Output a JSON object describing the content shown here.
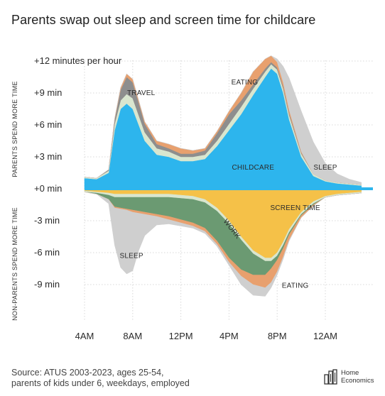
{
  "title": "Parents swap out sleep and screen time for childcare",
  "source_lines": [
    "Source: ATUS 2003-2023, ages 25-54,",
    "parents of kids under 6, weekdays, employed"
  ],
  "logo": {
    "line1": "Home",
    "line2": "Economics"
  },
  "colors": {
    "childcare": "#2db5ed",
    "screen_time": "#f5c148",
    "work": "#6b9a72",
    "sleep": "#cfcfcf",
    "eating": "#e8a06e",
    "travel": "#8e8e8e",
    "thin_band": "#d9e6cf",
    "zero_line": "#2db5ed",
    "grid": "#d8d8d8"
  },
  "chart_data": {
    "type": "area",
    "title": "Parents swap out sleep and screen time for childcare",
    "y_top_label": "PARENTS SPEND MORE TIME",
    "y_bottom_label": "NON-PARENTS SPEND MORE TIME",
    "x_ticks": [
      {
        "hour": 4,
        "label": "4AM"
      },
      {
        "hour": 8,
        "label": "8AM"
      },
      {
        "hour": 12,
        "label": "12PM"
      },
      {
        "hour": 16,
        "label": "4PM"
      },
      {
        "hour": 20,
        "label": "8PM"
      },
      {
        "hour": 24,
        "label": "12AM"
      }
    ],
    "xlim": [
      0,
      28
    ],
    "y_ticks": [
      {
        "value": 12,
        "label": "+12 minutes per hour"
      },
      {
        "value": 9,
        "label": "+9 min"
      },
      {
        "value": 6,
        "label": "+6 min"
      },
      {
        "value": 3,
        "label": "+3 min"
      },
      {
        "value": 0,
        "label": "+0 min"
      },
      {
        "value": -3,
        "label": "-3 min"
      },
      {
        "value": -6,
        "label": "-6 min"
      },
      {
        "value": -9,
        "label": "-9 min"
      }
    ],
    "ylim": [
      -11.5,
      12
    ],
    "grid": true,
    "x_hours": [
      4,
      5,
      6,
      6.5,
      7,
      7.5,
      8,
      8.5,
      9,
      10,
      11,
      12,
      13,
      14,
      15,
      16,
      17,
      18,
      19,
      19.5,
      20,
      20.5,
      21,
      22,
      23,
      24,
      25,
      26,
      27
    ],
    "positive_series": [
      {
        "name": "CHILDCARE",
        "color_key": "childcare",
        "values": [
          1.0,
          0.9,
          1.5,
          5.5,
          7.5,
          8.0,
          7.5,
          6.0,
          4.5,
          3.2,
          3.0,
          2.6,
          2.6,
          2.8,
          4.0,
          5.5,
          7.0,
          8.8,
          10.5,
          11.3,
          10.8,
          9.0,
          6.5,
          3.0,
          1.2,
          0.7,
          0.5,
          0.4,
          0.3
        ]
      },
      {
        "name": "thin band",
        "color_key": "thin_band",
        "values": [
          0.1,
          0.1,
          0.2,
          0.6,
          0.8,
          0.9,
          1.0,
          0.9,
          0.8,
          0.6,
          0.5,
          0.4,
          0.4,
          0.4,
          0.5,
          0.6,
          0.7,
          0.6,
          0.5,
          0.4,
          0.4,
          0.4,
          0.4,
          0.3,
          0.2,
          0.1,
          0.1,
          0.1,
          0.1
        ]
      },
      {
        "name": "TRAVEL",
        "color_key": "travel",
        "values": [
          0.0,
          0.0,
          0.1,
          0.4,
          1.0,
          1.6,
          1.5,
          1.2,
          0.8,
          0.4,
          0.3,
          0.3,
          0.3,
          0.4,
          0.7,
          0.9,
          0.6,
          0.4,
          0.3,
          0.2,
          0.2,
          0.2,
          0.2,
          0.1,
          0.0,
          0.0,
          0.0,
          0.0,
          0.0
        ]
      },
      {
        "name": "EATING",
        "color_key": "eating",
        "values": [
          0.0,
          0.0,
          0.0,
          0.1,
          0.2,
          0.3,
          0.3,
          0.2,
          0.2,
          0.3,
          0.4,
          0.5,
          0.3,
          0.2,
          0.2,
          0.3,
          0.7,
          1.2,
          0.9,
          0.6,
          0.5,
          0.4,
          0.3,
          0.1,
          0.0,
          0.0,
          0.0,
          0.0,
          0.0
        ]
      },
      {
        "name": "SLEEP",
        "color_key": "sleep",
        "values": [
          0.0,
          0.0,
          0.0,
          0.0,
          0.0,
          0.0,
          0.0,
          0.0,
          0.0,
          0.0,
          0.0,
          0.0,
          0.0,
          0.0,
          0.0,
          0.0,
          0.0,
          0.0,
          0.0,
          0.0,
          0.3,
          1.5,
          3.0,
          3.8,
          3.0,
          1.6,
          0.8,
          0.4,
          0.2
        ]
      }
    ],
    "negative_series": [
      {
        "name": "SCREEN TIME",
        "color_key": "screen_time",
        "values": [
          -0.2,
          -0.3,
          -0.4,
          -0.5,
          -0.5,
          -0.5,
          -0.5,
          -0.5,
          -0.5,
          -0.5,
          -0.5,
          -0.6,
          -0.7,
          -1.0,
          -1.8,
          -3.0,
          -4.5,
          -5.8,
          -6.5,
          -6.5,
          -6.0,
          -5.0,
          -3.8,
          -2.2,
          -1.2,
          -0.7,
          -0.5,
          -0.4,
          -0.3
        ]
      },
      {
        "name": "thin band",
        "color_key": "thin_band",
        "values": [
          -0.1,
          -0.1,
          -0.2,
          -0.3,
          -0.3,
          -0.3,
          -0.3,
          -0.3,
          -0.3,
          -0.3,
          -0.3,
          -0.3,
          -0.3,
          -0.3,
          -0.3,
          -0.3,
          -0.3,
          -0.3,
          -0.3,
          -0.3,
          -0.3,
          -0.3,
          -0.3,
          -0.2,
          -0.2,
          -0.1,
          -0.1,
          -0.1,
          -0.1
        ]
      },
      {
        "name": "WORK",
        "color_key": "work",
        "values": [
          0.0,
          -0.1,
          -0.4,
          -0.9,
          -1.0,
          -1.1,
          -1.2,
          -1.3,
          -1.4,
          -1.6,
          -1.8,
          -2.0,
          -2.2,
          -2.4,
          -2.8,
          -3.2,
          -2.8,
          -2.0,
          -1.3,
          -0.7,
          -0.4,
          -0.3,
          -0.2,
          -0.1,
          -0.1,
          0.0,
          0.0,
          0.0,
          0.0
        ]
      },
      {
        "name": "EATING",
        "color_key": "eating",
        "values": [
          0.0,
          0.0,
          0.0,
          -0.1,
          -0.1,
          -0.1,
          -0.2,
          -0.2,
          -0.2,
          -0.2,
          -0.3,
          -0.3,
          -0.3,
          -0.3,
          -0.3,
          -0.4,
          -0.6,
          -0.9,
          -1.2,
          -1.3,
          -1.1,
          -0.8,
          -0.5,
          -0.2,
          -0.1,
          0.0,
          0.0,
          0.0,
          0.0
        ]
      },
      {
        "name": "SLEEP",
        "color_key": "sleep",
        "values": [
          0.0,
          0.0,
          -0.4,
          -3.5,
          -5.5,
          -6.0,
          -5.5,
          -3.5,
          -2.0,
          -0.8,
          -0.4,
          -0.3,
          -0.2,
          -0.2,
          -0.2,
          -0.3,
          -0.8,
          -1.0,
          -0.8,
          -0.5,
          -0.3,
          -0.2,
          -0.1,
          0.0,
          0.0,
          0.0,
          0.0,
          0.0,
          0.0
        ]
      }
    ],
    "annotations": [
      {
        "text": "TRAVEL",
        "hour": 8.7,
        "value": 8.8
      },
      {
        "text": "EATING",
        "hour": 17.3,
        "value": 9.8
      },
      {
        "text": "CHILDCARE",
        "hour": 18.0,
        "value": 1.8
      },
      {
        "text": "SLEEP",
        "hour": 24.0,
        "value": 1.8
      },
      {
        "text": "SCREEN TIME",
        "hour": 21.5,
        "value": -2.0
      },
      {
        "text": "WORK",
        "hour": 16.1,
        "value": -3.9
      },
      {
        "text": "SLEEP",
        "hour": 7.9,
        "value": -6.5
      },
      {
        "text": "EATING",
        "hour": 21.5,
        "value": -9.3
      }
    ]
  }
}
